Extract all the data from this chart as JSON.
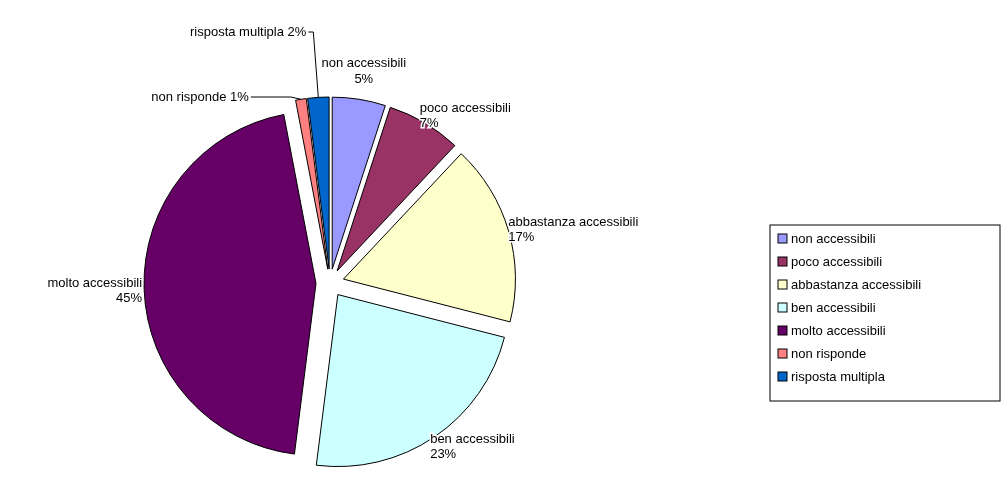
{
  "chart_data": {
    "type": "pie",
    "categories": [
      "non accessibili",
      "poco accessibili",
      "abbastanza accessibili",
      "ben accessibili",
      "molto accessibili",
      "non risponde",
      "risposta multipla"
    ],
    "values": [
      5,
      7,
      17,
      23,
      45,
      1,
      2
    ],
    "colors": [
      "#9999ff",
      "#993366",
      "#ffffcc",
      "#ccffff",
      "#660066",
      "#ff8080",
      "#0066cc"
    ],
    "value_labels": [
      "5%",
      "7%",
      "17%",
      "23%",
      "45%",
      "1%",
      "2%"
    ],
    "legend": "right"
  }
}
